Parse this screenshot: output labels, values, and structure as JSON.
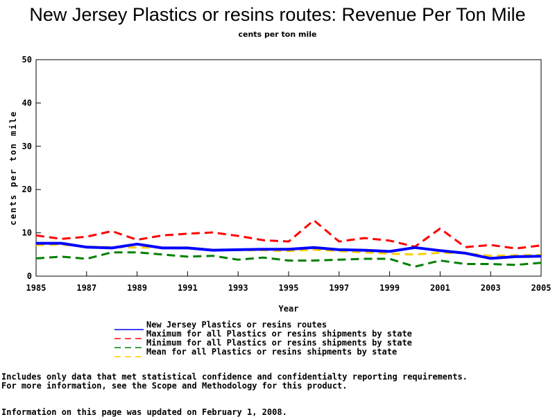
{
  "notes": {
    "line1": "Includes only data that met statistical confidence and confidentialty reporting requirements.",
    "line2": "For more information, see the Scope and Methodology for this product.",
    "updated": "Information on this page was updated on February 1, 2008."
  },
  "chart_data": {
    "type": "line",
    "title": "New Jersey Plastics or resins routes: Revenue Per Ton Mile",
    "subtitle": "cents per ton mile",
    "xlabel": "Year",
    "ylabel": "cents per ton mile",
    "xlim": [
      1985,
      2005
    ],
    "ylim": [
      0,
      50
    ],
    "xticks": [
      1985,
      1987,
      1989,
      1991,
      1993,
      1995,
      1997,
      1999,
      2001,
      2003,
      2005
    ],
    "yticks": [
      0,
      10,
      20,
      30,
      40,
      50
    ],
    "grid": false,
    "legend_position": "bottom",
    "x": [
      1985,
      1986,
      1987,
      1988,
      1989,
      1990,
      1991,
      1992,
      1993,
      1994,
      1995,
      1996,
      1997,
      1998,
      1999,
      2000,
      2001,
      2002,
      2003,
      2004,
      2005
    ],
    "series": [
      {
        "name": "New Jersey Plastics or resins routes",
        "color": "#0000ff",
        "style": "solid",
        "values": [
          7.6,
          7.6,
          6.7,
          6.5,
          7.4,
          6.5,
          6.5,
          6.0,
          6.1,
          6.2,
          6.2,
          6.6,
          6.1,
          6.0,
          5.7,
          6.6,
          5.9,
          5.3,
          4.1,
          4.5,
          4.6
        ]
      },
      {
        "name": "Maximum for all Plastics or resins shipments by state",
        "color": "#ff0000",
        "style": "dashed",
        "values": [
          9.4,
          8.6,
          9.1,
          10.4,
          8.4,
          9.4,
          9.8,
          10.1,
          9.3,
          8.3,
          8.0,
          12.9,
          8.0,
          8.8,
          8.2,
          6.8,
          11.0,
          6.7,
          7.2,
          6.4,
          7.1
        ]
      },
      {
        "name": "Minimum for all Plastics or resins shipments by state",
        "color": "#008000",
        "style": "dashed",
        "values": [
          4.1,
          4.5,
          4.0,
          5.5,
          5.5,
          5.0,
          4.5,
          4.7,
          3.8,
          4.3,
          3.6,
          3.6,
          3.8,
          4.0,
          4.0,
          2.2,
          3.6,
          2.8,
          2.8,
          2.6,
          3.1
        ]
      },
      {
        "name": "Mean for all Plastics or resins shipments by state",
        "color": "#ffcc00",
        "style": "dashed",
        "values": [
          7.2,
          7.3,
          6.8,
          6.7,
          6.6,
          6.6,
          6.6,
          6.1,
          6.0,
          6.0,
          5.8,
          6.1,
          5.8,
          5.5,
          5.2,
          5.0,
          5.4,
          5.3,
          4.7,
          4.8,
          4.9
        ]
      }
    ]
  }
}
